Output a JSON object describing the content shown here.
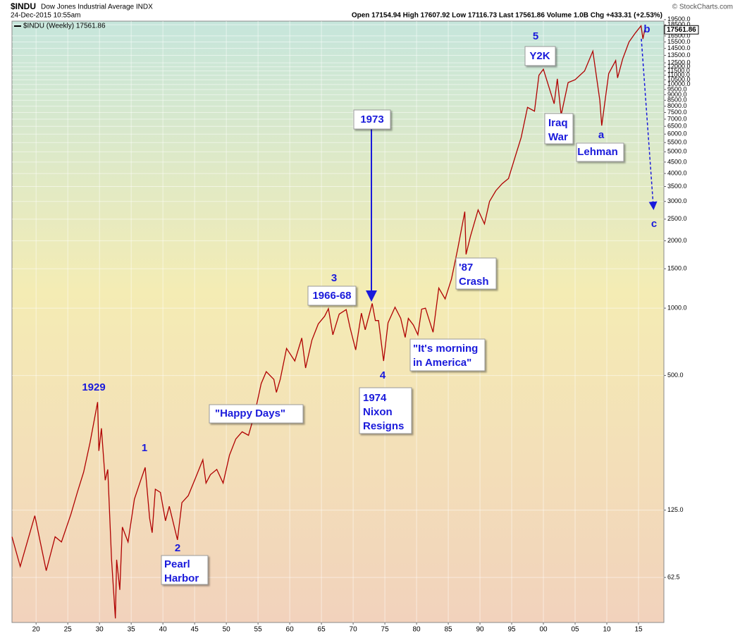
{
  "chart_data": {
    "type": "line",
    "symbol": "$INDU",
    "name": "Dow Jones Industrial Average INDX",
    "date": "24-Dec-2015 10:55am",
    "quote": "Open 17154.94  High 17607.92  Low 17116.73  Last 17561.86  Volume 1.0B  Chg +433.31 (+2.53%)",
    "watermark": "© StockCharts.com",
    "last_value": 17561.86,
    "log_scale": true,
    "grid": true,
    "legend": "top-left",
    "xlim": [
      1916.2,
      2019
    ],
    "ylim": [
      39.3,
      19200
    ],
    "xticks": [
      {
        "value": 1920,
        "label": "20"
      },
      {
        "value": 1925,
        "label": "25"
      },
      {
        "value": 1930,
        "label": "30"
      },
      {
        "value": 1935,
        "label": "35"
      },
      {
        "value": 1940,
        "label": "40"
      },
      {
        "value": 1945,
        "label": "45"
      },
      {
        "value": 1950,
        "label": "50"
      },
      {
        "value": 1955,
        "label": "55"
      },
      {
        "value": 1960,
        "label": "60"
      },
      {
        "value": 1965,
        "label": "65"
      },
      {
        "value": 1970,
        "label": "70"
      },
      {
        "value": 1975,
        "label": "75"
      },
      {
        "value": 1980,
        "label": "80"
      },
      {
        "value": 1985,
        "label": "85"
      },
      {
        "value": 1990,
        "label": "90"
      },
      {
        "value": 1995,
        "label": "95"
      },
      {
        "value": 2000,
        "label": "00"
      },
      {
        "value": 2005,
        "label": "05"
      },
      {
        "value": 2010,
        "label": "10"
      },
      {
        "value": 2015,
        "label": "15"
      }
    ],
    "yticks": [
      62.5,
      {
        "value": 125,
        "label": "125.0"
      },
      {
        "value": 500,
        "label": "500.0"
      },
      {
        "value": 1000,
        "label": "1000.0"
      },
      {
        "value": 1500,
        "label": "1500.0"
      },
      {
        "value": 2000,
        "label": "2000.0"
      },
      {
        "value": 2500,
        "label": "2500.0"
      },
      {
        "value": 3000,
        "label": "3000.0"
      },
      {
        "value": 3500,
        "label": "3500.0"
      },
      {
        "value": 4000,
        "label": "4000.0"
      },
      {
        "value": 4500,
        "label": "4500.0"
      },
      {
        "value": 5000,
        "label": "5000.0"
      },
      {
        "value": 5500,
        "label": "5500.0"
      },
      {
        "value": 6000,
        "label": "6000.0"
      },
      {
        "value": 6500,
        "label": "6500.0"
      },
      {
        "value": 7000,
        "label": "7000.0"
      },
      {
        "value": 7500,
        "label": "7500.0"
      },
      {
        "value": 8000,
        "label": "8000.0"
      },
      {
        "value": 8500,
        "label": "8500.0"
      },
      {
        "value": 9000,
        "label": "9000.0"
      },
      {
        "value": 9500,
        "label": "9500.0"
      },
      {
        "value": 10000,
        "label": "10000.0"
      },
      {
        "value": 10500,
        "label": "10500.0"
      },
      {
        "value": 11000,
        "label": "11000.0"
      },
      {
        "value": 11500,
        "label": "11500.0"
      },
      {
        "value": 12000,
        "label": "12000.0"
      },
      {
        "value": 12500,
        "label": "12500.0"
      },
      {
        "value": 13500,
        "label": "13500.0"
      },
      {
        "value": 14500,
        "label": "14500.0"
      },
      {
        "value": 15500,
        "label": "15500.0"
      },
      {
        "value": 16500,
        "label": "16500.0"
      },
      {
        "value": 18500,
        "label": "18500.0"
      },
      {
        "value": 19500,
        "label": "19500.0"
      }
    ],
    "x": [
      1916.2,
      1917.5,
      1919.8,
      1921.6,
      1923,
      1924,
      1925.5,
      1926.5,
      1927.5,
      1928.5,
      1929.7,
      1929.9,
      1930.3,
      1930.9,
      1931.3,
      1931.9,
      1932.5,
      1932.7,
      1933.2,
      1933.6,
      1934.5,
      1935.5,
      1936.5,
      1937.2,
      1937.9,
      1938.3,
      1938.8,
      1939.6,
      1940.4,
      1941,
      1942.3,
      1943,
      1944,
      1945,
      1946.3,
      1946.8,
      1947.5,
      1948.5,
      1949.5,
      1950.5,
      1951.5,
      1952.5,
      1953.5,
      1954.5,
      1955.5,
      1956.3,
      1957.5,
      1957.9,
      1958.5,
      1959.5,
      1960.8,
      1961.9,
      1962.5,
      1963.5,
      1964.5,
      1965.5,
      1966.1,
      1966.8,
      1967.8,
      1968.9,
      1969.5,
      1970.4,
      1971.3,
      1971.9,
      1973,
      1973.5,
      1974,
      1974.8,
      1975.5,
      1976.6,
      1977.5,
      1978.2,
      1978.7,
      1979.5,
      1980.2,
      1980.8,
      1981.4,
      1982.6,
      1983.5,
      1984.5,
      1985.5,
      1986.5,
      1987.6,
      1987.8,
      1988.5,
      1989.7,
      1990.7,
      1991.5,
      1992.5,
      1993.5,
      1994.5,
      1995.5,
      1996.5,
      1997.5,
      1998.6,
      1999.3,
      2000,
      2001.7,
      2002.2,
      2002.8,
      2003.9,
      2005,
      2006.5,
      2007.8,
      2008.9,
      2009.2,
      2010.3,
      2011.4,
      2011.7,
      2012.5,
      2013.5,
      2014.5,
      2015.4,
      2015.7,
      2015.98
    ],
    "series": [
      {
        "name": "$INDU (Weekly) 17561.86",
        "color": "#b00000",
        "values": [
          95,
          70,
          118,
          67,
          95,
          90,
          120,
          150,
          185,
          250,
          380,
          230,
          290,
          170,
          190,
          75,
          41,
          75,
          55,
          105,
          90,
          140,
          170,
          194,
          115,
          99,
          155,
          150,
          112,
          130,
          92,
          135,
          145,
          170,
          210,
          165,
          180,
          190,
          165,
          220,
          260,
          280,
          270,
          340,
          460,
          520,
          480,
          420,
          480,
          660,
          580,
          735,
          540,
          720,
          850,
          920,
          995,
          760,
          940,
          985,
          820,
          650,
          950,
          800,
          1050,
          880,
          880,
          580,
          860,
          1010,
          900,
          740,
          900,
          840,
          760,
          990,
          1000,
          780,
          1230,
          1100,
          1350,
          1850,
          2700,
          1740,
          2100,
          2750,
          2380,
          3000,
          3350,
          3600,
          3800,
          4700,
          5800,
          7900,
          7600,
          11000,
          11700,
          8200,
          10600,
          7300,
          10200,
          10500,
          11500,
          14100,
          8500,
          6550,
          11200,
          12800,
          10700,
          13000,
          15500,
          17000,
          18300,
          16000,
          17561.86
        ]
      }
    ],
    "annotations": [
      [
        "b"
      ],
      [
        "c"
      ],
      [
        "5"
      ],
      [
        "Y2K"
      ],
      [
        "Iraq",
        "War"
      ],
      [
        "a"
      ],
      [
        "Lehman"
      ],
      [
        "1973"
      ],
      [
        "3"
      ],
      [
        "1966-68"
      ],
      [
        "'87",
        "Crash"
      ],
      [
        "\"It's morning",
        "in America\""
      ],
      [
        "4"
      ],
      [
        "1974",
        "Nixon",
        "Resigns"
      ],
      [
        "1929"
      ],
      [
        "1"
      ],
      [
        "\"Happy Days\""
      ],
      [
        "2"
      ],
      [
        "Pearl",
        "Harbor"
      ]
    ]
  }
}
